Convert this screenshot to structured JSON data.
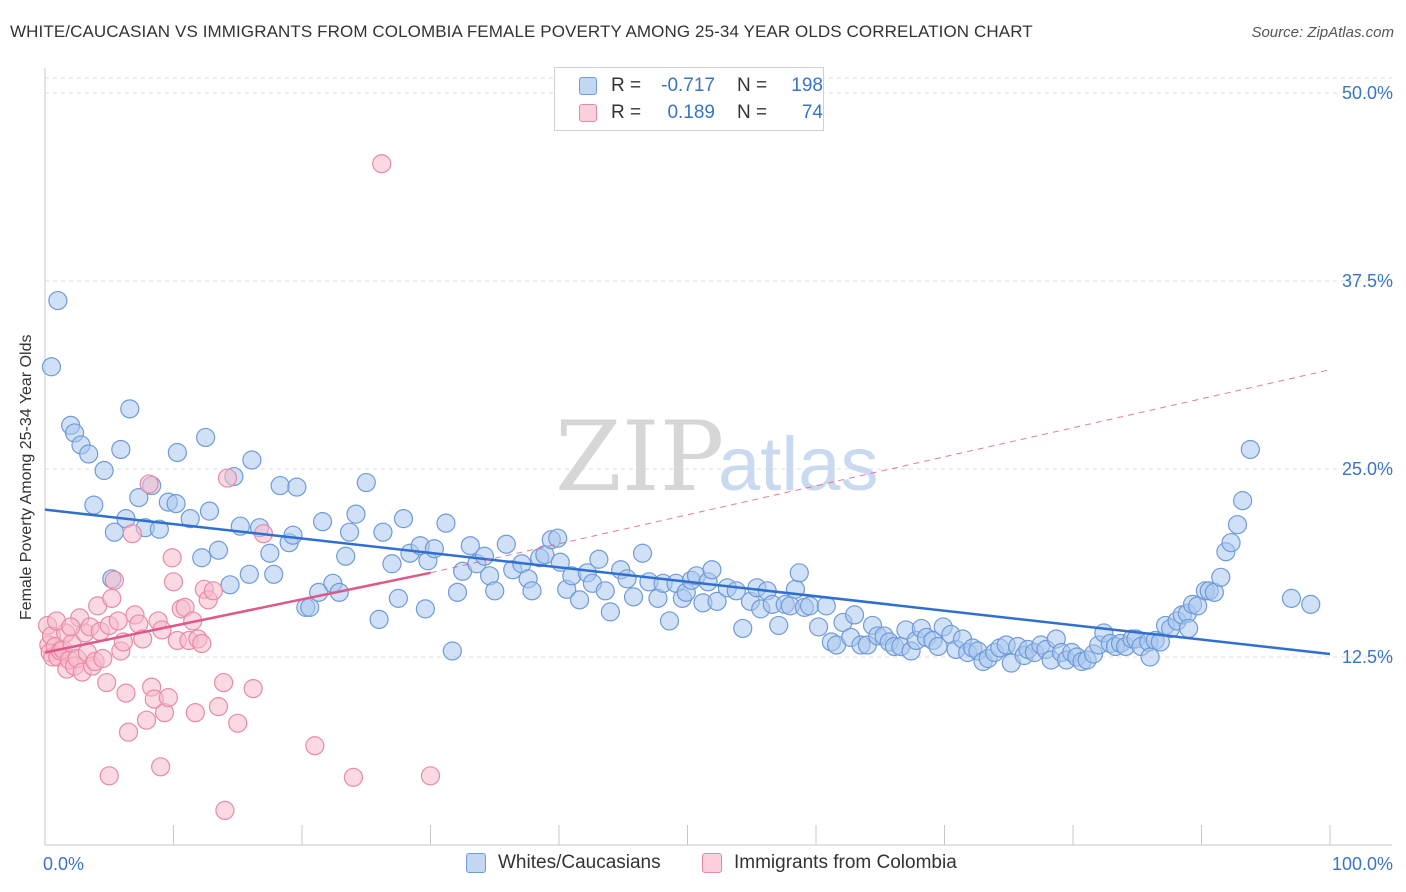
{
  "header": {
    "title": "WHITE/CAUCASIAN VS IMMIGRANTS FROM COLOMBIA FEMALE POVERTY AMONG 25-34 YEAR OLDS CORRELATION CHART",
    "source": "Source: ZipAtlas.com"
  },
  "watermark": {
    "part1": "ZIP",
    "part2": "atlas"
  },
  "legend": {
    "rows": [
      {
        "r_label": "R =",
        "r_value": "-0.717",
        "n_label": "N =",
        "n_value": "198",
        "color": "#a9c6ee",
        "stroke": "#6f9bd8"
      },
      {
        "r_label": "R =",
        "r_value": "0.189",
        "n_label": "N =",
        "n_value": "74",
        "color": "#f7b9cb",
        "stroke": "#e88aa5"
      }
    ]
  },
  "bottom_legend": {
    "series1": "Whites/Caucasians",
    "series2": "Immigrants from Colombia"
  },
  "chart_data": {
    "type": "scatter",
    "title": "WHITE/CAUCASIAN VS IMMIGRANTS FROM COLOMBIA FEMALE POVERTY AMONG 25-34 YEAR OLDS CORRELATION CHART",
    "xlabel": "",
    "ylabel": "Female Poverty Among 25-34 Year Olds",
    "xlim": [
      0,
      100
    ],
    "ylim": [
      0,
      51
    ],
    "x_tick_labels": [
      "0.0%",
      "100.0%"
    ],
    "y_ticks": [
      12.5,
      25.0,
      37.5,
      50.0
    ],
    "y_tick_labels": [
      "12.5%",
      "25.0%",
      "37.5%",
      "50.0%"
    ],
    "grid": "horizontal dashed",
    "legend_position": "top-center",
    "colors": {
      "blue": "#6f9bd8",
      "blue_fill": "#a9c6ee",
      "blue_line": "#2f6fd0",
      "pink": "#e88aa5",
      "pink_fill": "#f7b9cb",
      "pink_line": "#e0578a"
    },
    "series": [
      {
        "name": "Whites/Caucasians",
        "r": -0.717,
        "n": 198,
        "trend": {
          "x": [
            0,
            100
          ],
          "y": [
            22.3,
            12.7
          ],
          "style": "solid"
        },
        "points": [
          [
            1.0,
            36.2
          ],
          [
            0.5,
            31.8
          ],
          [
            2.0,
            27.9
          ],
          [
            2.3,
            27.4
          ],
          [
            2.8,
            26.6
          ],
          [
            3.4,
            26.0
          ],
          [
            3.8,
            22.6
          ],
          [
            4.6,
            24.9
          ],
          [
            5.2,
            17.7
          ],
          [
            5.4,
            20.8
          ],
          [
            5.9,
            26.3
          ],
          [
            6.3,
            21.7
          ],
          [
            6.6,
            29.0
          ],
          [
            7.3,
            23.1
          ],
          [
            7.8,
            21.1
          ],
          [
            8.3,
            23.9
          ],
          [
            8.9,
            21.0
          ],
          [
            9.6,
            22.8
          ],
          [
            10.2,
            22.7
          ],
          [
            10.3,
            26.1
          ],
          [
            11.3,
            21.7
          ],
          [
            12.2,
            19.1
          ],
          [
            12.5,
            27.1
          ],
          [
            12.8,
            22.2
          ],
          [
            13.5,
            19.6
          ],
          [
            14.4,
            17.3
          ],
          [
            14.7,
            24.5
          ],
          [
            15.2,
            21.2
          ],
          [
            15.9,
            18.0
          ],
          [
            16.1,
            25.6
          ],
          [
            16.7,
            21.1
          ],
          [
            17.5,
            19.4
          ],
          [
            17.8,
            18.0
          ],
          [
            18.3,
            23.9
          ],
          [
            19.0,
            20.1
          ],
          [
            19.3,
            20.6
          ],
          [
            19.6,
            23.8
          ],
          [
            20.3,
            15.8
          ],
          [
            20.6,
            15.8
          ],
          [
            21.3,
            16.8
          ],
          [
            21.6,
            21.5
          ],
          [
            22.4,
            17.4
          ],
          [
            22.9,
            16.8
          ],
          [
            23.4,
            19.2
          ],
          [
            23.7,
            20.8
          ],
          [
            24.2,
            22.0
          ],
          [
            25.0,
            24.1
          ],
          [
            26.0,
            15.0
          ],
          [
            26.3,
            20.8
          ],
          [
            27.0,
            18.7
          ],
          [
            27.5,
            16.4
          ],
          [
            27.9,
            21.7
          ],
          [
            28.4,
            19.4
          ],
          [
            29.2,
            19.9
          ],
          [
            29.6,
            15.7
          ],
          [
            29.8,
            18.9
          ],
          [
            30.3,
            19.7
          ],
          [
            31.2,
            21.4
          ],
          [
            31.7,
            12.9
          ],
          [
            32.1,
            16.8
          ],
          [
            32.5,
            18.2
          ],
          [
            33.1,
            19.9
          ],
          [
            33.6,
            18.7
          ],
          [
            34.2,
            19.2
          ],
          [
            34.6,
            17.9
          ],
          [
            35.0,
            16.9
          ],
          [
            35.9,
            20.0
          ],
          [
            36.4,
            18.3
          ],
          [
            37.1,
            18.7
          ],
          [
            37.6,
            17.7
          ],
          [
            37.9,
            16.9
          ],
          [
            38.5,
            19.1
          ],
          [
            38.9,
            19.3
          ],
          [
            39.4,
            20.3
          ],
          [
            39.9,
            20.4
          ],
          [
            40.1,
            18.8
          ],
          [
            40.6,
            17.0
          ],
          [
            41.0,
            17.9
          ],
          [
            41.6,
            16.3
          ],
          [
            42.2,
            18.1
          ],
          [
            42.6,
            17.4
          ],
          [
            43.1,
            19.0
          ],
          [
            43.6,
            16.9
          ],
          [
            44.0,
            15.5
          ],
          [
            44.8,
            18.3
          ],
          [
            45.3,
            17.7
          ],
          [
            45.8,
            16.5
          ],
          [
            46.5,
            19.4
          ],
          [
            47.0,
            17.5
          ],
          [
            47.7,
            16.4
          ],
          [
            48.1,
            17.4
          ],
          [
            48.6,
            14.9
          ],
          [
            49.1,
            17.4
          ],
          [
            49.6,
            16.4
          ],
          [
            49.9,
            16.8
          ],
          [
            50.3,
            17.6
          ],
          [
            50.7,
            17.9
          ],
          [
            51.2,
            16.1
          ],
          [
            51.6,
            17.5
          ],
          [
            51.9,
            18.3
          ],
          [
            52.3,
            16.2
          ],
          [
            53.1,
            17.1
          ],
          [
            53.8,
            16.9
          ],
          [
            54.3,
            14.4
          ],
          [
            54.9,
            16.2
          ],
          [
            55.4,
            17.1
          ],
          [
            55.7,
            15.7
          ],
          [
            56.2,
            16.9
          ],
          [
            56.6,
            16.0
          ],
          [
            57.1,
            14.6
          ],
          [
            57.6,
            16.0
          ],
          [
            58.0,
            15.9
          ],
          [
            58.4,
            17.0
          ],
          [
            58.7,
            18.1
          ],
          [
            59.1,
            15.8
          ],
          [
            59.5,
            15.9
          ],
          [
            60.2,
            14.5
          ],
          [
            60.8,
            15.9
          ],
          [
            61.2,
            13.5
          ],
          [
            61.6,
            13.3
          ],
          [
            62.1,
            14.8
          ],
          [
            62.7,
            13.8
          ],
          [
            63.0,
            15.3
          ],
          [
            63.5,
            13.3
          ],
          [
            64.0,
            13.3
          ],
          [
            64.4,
            14.6
          ],
          [
            64.8,
            13.9
          ],
          [
            65.3,
            13.9
          ],
          [
            65.7,
            13.5
          ],
          [
            66.1,
            13.2
          ],
          [
            66.6,
            13.2
          ],
          [
            67.0,
            14.3
          ],
          [
            67.4,
            12.9
          ],
          [
            67.8,
            13.6
          ],
          [
            68.2,
            14.4
          ],
          [
            68.6,
            13.8
          ],
          [
            69.1,
            13.6
          ],
          [
            69.5,
            13.2
          ],
          [
            69.9,
            14.5
          ],
          [
            70.5,
            14.0
          ],
          [
            70.9,
            13.0
          ],
          [
            71.4,
            13.7
          ],
          [
            71.8,
            12.8
          ],
          [
            72.2,
            13.1
          ],
          [
            72.6,
            12.9
          ],
          [
            73.0,
            12.2
          ],
          [
            73.4,
            12.4
          ],
          [
            73.9,
            12.8
          ],
          [
            74.3,
            13.1
          ],
          [
            74.8,
            13.3
          ],
          [
            75.2,
            12.1
          ],
          [
            75.7,
            13.2
          ],
          [
            76.2,
            12.6
          ],
          [
            76.5,
            13.0
          ],
          [
            77.0,
            12.8
          ],
          [
            77.5,
            13.3
          ],
          [
            77.9,
            13.0
          ],
          [
            78.3,
            12.3
          ],
          [
            78.7,
            13.7
          ],
          [
            79.1,
            12.8
          ],
          [
            79.5,
            12.3
          ],
          [
            79.9,
            12.8
          ],
          [
            80.3,
            12.5
          ],
          [
            80.7,
            12.2
          ],
          [
            81.1,
            12.3
          ],
          [
            81.6,
            12.7
          ],
          [
            82.0,
            13.3
          ],
          [
            82.4,
            14.1
          ],
          [
            82.9,
            13.4
          ],
          [
            83.3,
            13.2
          ],
          [
            83.7,
            13.4
          ],
          [
            84.1,
            13.2
          ],
          [
            84.6,
            13.7
          ],
          [
            84.9,
            13.7
          ],
          [
            85.3,
            13.2
          ],
          [
            85.9,
            13.5
          ],
          [
            86.4,
            13.6
          ],
          [
            86.8,
            13.5
          ],
          [
            87.2,
            14.6
          ],
          [
            87.6,
            14.4
          ],
          [
            88.1,
            14.9
          ],
          [
            88.5,
            15.3
          ],
          [
            88.9,
            15.4
          ],
          [
            89.3,
            16.0
          ],
          [
            89.7,
            15.9
          ],
          [
            90.3,
            16.9
          ],
          [
            90.6,
            16.9
          ],
          [
            91.0,
            16.8
          ],
          [
            91.5,
            17.8
          ],
          [
            91.9,
            19.5
          ],
          [
            92.3,
            20.1
          ],
          [
            92.8,
            21.3
          ],
          [
            93.2,
            22.9
          ],
          [
            93.8,
            26.3
          ],
          [
            97.0,
            16.4
          ],
          [
            98.5,
            16.0
          ],
          [
            86.0,
            12.5
          ],
          [
            89.0,
            14.4
          ]
        ]
      },
      {
        "name": "Immigrants from Colombia",
        "r": 0.189,
        "n": 74,
        "trend": {
          "x": [
            0,
            30
          ],
          "y": [
            12.8,
            18.1
          ],
          "style": "solid",
          "extended": {
            "x": [
              30,
              100
            ],
            "y": [
              18.1,
              31.6
            ],
            "style": "dashed"
          }
        },
        "points": [
          [
            0.2,
            14.6
          ],
          [
            0.3,
            13.3
          ],
          [
            0.4,
            12.8
          ],
          [
            0.5,
            13.9
          ],
          [
            0.6,
            12.5
          ],
          [
            0.8,
            13.2
          ],
          [
            1.0,
            12.5
          ],
          [
            1.2,
            12.9
          ],
          [
            1.4,
            13.0
          ],
          [
            1.6,
            14.1
          ],
          [
            1.7,
            11.7
          ],
          [
            1.9,
            12.3
          ],
          [
            2.1,
            13.4
          ],
          [
            2.3,
            11.9
          ],
          [
            2.5,
            12.4
          ],
          [
            2.7,
            15.1
          ],
          [
            2.9,
            11.5
          ],
          [
            3.1,
            14.1
          ],
          [
            3.3,
            12.8
          ],
          [
            3.5,
            14.5
          ],
          [
            3.7,
            11.9
          ],
          [
            3.9,
            12.2
          ],
          [
            4.1,
            15.9
          ],
          [
            4.3,
            14.2
          ],
          [
            4.5,
            12.4
          ],
          [
            4.8,
            10.8
          ],
          [
            5.0,
            14.6
          ],
          [
            5.2,
            16.4
          ],
          [
            5.4,
            17.6
          ],
          [
            5.7,
            14.9
          ],
          [
            5.9,
            12.9
          ],
          [
            6.1,
            13.5
          ],
          [
            6.3,
            10.1
          ],
          [
            6.5,
            7.5
          ],
          [
            6.8,
            20.7
          ],
          [
            7.0,
            15.3
          ],
          [
            7.3,
            14.7
          ],
          [
            7.6,
            13.7
          ],
          [
            7.9,
            8.3
          ],
          [
            8.1,
            24.0
          ],
          [
            8.3,
            10.5
          ],
          [
            8.5,
            9.7
          ],
          [
            8.8,
            14.9
          ],
          [
            9.1,
            14.3
          ],
          [
            9.3,
            8.8
          ],
          [
            9.6,
            9.8
          ],
          [
            9.9,
            19.1
          ],
          [
            10.0,
            17.5
          ],
          [
            10.3,
            13.6
          ],
          [
            10.6,
            15.7
          ],
          [
            10.9,
            15.8
          ],
          [
            11.2,
            13.6
          ],
          [
            11.5,
            14.9
          ],
          [
            11.7,
            8.8
          ],
          [
            11.9,
            13.7
          ],
          [
            12.2,
            13.4
          ],
          [
            12.4,
            17.0
          ],
          [
            12.7,
            16.3
          ],
          [
            13.1,
            16.9
          ],
          [
            13.5,
            9.2
          ],
          [
            13.9,
            10.8
          ],
          [
            14.2,
            24.4
          ],
          [
            15.0,
            8.1
          ],
          [
            16.2,
            10.4
          ],
          [
            17.0,
            20.7
          ],
          [
            21.0,
            6.6
          ],
          [
            24.0,
            4.5
          ],
          [
            26.2,
            45.3
          ],
          [
            30.0,
            4.6
          ],
          [
            14.0,
            2.3
          ],
          [
            5.0,
            4.6
          ],
          [
            9.0,
            5.2
          ],
          [
            0.9,
            14.9
          ],
          [
            2.0,
            14.5
          ]
        ]
      }
    ]
  }
}
